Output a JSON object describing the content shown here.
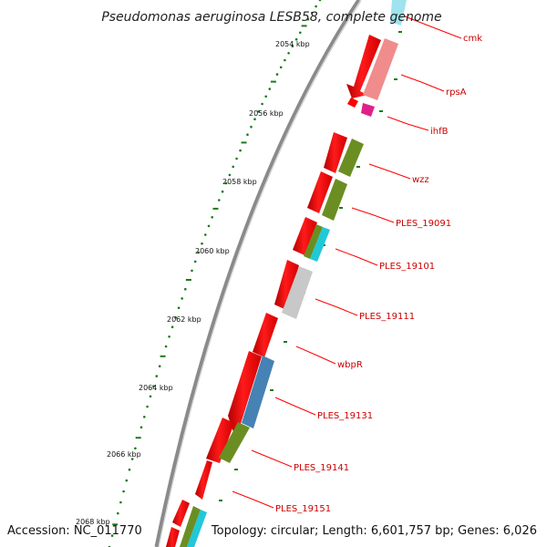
{
  "title": "Pseudomonas aeruginosa LESB58, complete genome",
  "footer": {
    "accession": "Accession: NC_011770",
    "summary": "Topology: circular; Length: 6,601,757 bp; Genes: 6,026"
  },
  "colors": {
    "backbone": "#8a8a8a",
    "forward_strand": "#ff0000",
    "tick": "#1a7a1a",
    "label": "#cc0000",
    "leader": "#ff0000"
  },
  "scale_labels": [
    "2054 kbp",
    "2056 kbp",
    "2058 kbp",
    "2060 kbp",
    "2062 kbp",
    "2064 kbp",
    "2066 kbp",
    "2068 kbp"
  ],
  "genes": [
    {
      "name": "cmk",
      "color": "#7fd6e6"
    },
    {
      "name": "rpsA",
      "color": "#f08080"
    },
    {
      "name": "ihfB",
      "color": "#e0208a"
    },
    {
      "name": "wzz",
      "color": "#6b8e23"
    },
    {
      "name": "PLES_19091",
      "color": "#6b8e23"
    },
    {
      "name": "PLES_19101",
      "color": "#20c0d0"
    },
    {
      "name": "PLES_19111",
      "color": "#c0c0c0"
    },
    {
      "name": "wbpR",
      "color": "#ff2020"
    },
    {
      "name": "PLES_19131",
      "color": "#4682b4"
    },
    {
      "name": "PLES_19141",
      "color": "#6b8e23"
    },
    {
      "name": "PLES_19151",
      "color": "#20c0d0"
    }
  ]
}
